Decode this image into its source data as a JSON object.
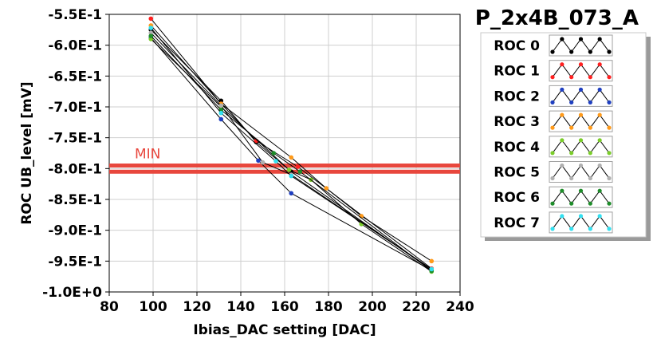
{
  "title": "P_2x4B_073_A",
  "chart_data": {
    "type": "line",
    "xlabel": "Ibias_DAC setting [DAC]",
    "ylabel": "ROC UB_level [mV]",
    "xlim": [
      80,
      240
    ],
    "ylim": [
      -1.0,
      -0.55
    ],
    "x_ticks": [
      80,
      100,
      120,
      140,
      160,
      180,
      200,
      220,
      240
    ],
    "x_tick_labels": [
      "80",
      "100",
      "120",
      "140",
      "160",
      "180",
      "200",
      "220",
      "240"
    ],
    "y_ticks": [
      -0.55,
      -0.6,
      -0.65,
      -0.7,
      -0.75,
      -0.8,
      -0.85,
      -0.9,
      -0.95,
      -1.0
    ],
    "y_tick_labels": [
      "-5.5E-1",
      "-6.0E-1",
      "-6.5E-1",
      "-7.0E-1",
      "-7.5E-1",
      "-8.0E-1",
      "-8.5E-1",
      "-9.0E-1",
      "-9.5E-1",
      "-1.0E+0"
    ],
    "grid": true,
    "legend_position": "right",
    "min_band": {
      "label": "MIN",
      "y_values": [
        -0.795,
        -0.805
      ],
      "color": "#e8473d"
    },
    "series": [
      {
        "name": "ROC 0",
        "color": "#000000",
        "x": [
          99,
          131,
          147,
          163,
          227
        ],
        "y": [
          -0.575,
          -0.69,
          -0.757,
          -0.805,
          -0.965
        ]
      },
      {
        "name": "ROC 1",
        "color": "#ff2020",
        "x": [
          99,
          131,
          147,
          166,
          227
        ],
        "y": [
          -0.557,
          -0.695,
          -0.755,
          -0.797,
          -0.962
        ]
      },
      {
        "name": "ROC 2",
        "color": "#1f3fc0",
        "x": [
          99,
          131,
          148,
          163,
          227
        ],
        "y": [
          -0.588,
          -0.72,
          -0.787,
          -0.84,
          -0.965
        ]
      },
      {
        "name": "ROC 3",
        "color": "#ff9a1a",
        "x": [
          99,
          131,
          163,
          179,
          195,
          227
        ],
        "y": [
          -0.568,
          -0.695,
          -0.782,
          -0.832,
          -0.877,
          -0.95
        ]
      },
      {
        "name": "ROC 4",
        "color": "#7acc2a",
        "x": [
          99,
          131,
          162,
          172,
          195,
          227
        ],
        "y": [
          -0.59,
          -0.7,
          -0.802,
          -0.818,
          -0.89,
          -0.967
        ]
      },
      {
        "name": "ROC 5",
        "color": "#b0b0b0",
        "x": [
          99,
          131,
          150,
          163,
          227
        ],
        "y": [
          -0.58,
          -0.698,
          -0.79,
          -0.81,
          -0.963
        ]
      },
      {
        "name": "ROC 6",
        "color": "#1e8c2a",
        "x": [
          99,
          131,
          155,
          167,
          227
        ],
        "y": [
          -0.585,
          -0.705,
          -0.775,
          -0.805,
          -0.966
        ]
      },
      {
        "name": "ROC 7",
        "color": "#33e0f0",
        "x": [
          99,
          131,
          156,
          163,
          227
        ],
        "y": [
          -0.572,
          -0.71,
          -0.788,
          -0.812,
          -0.963
        ]
      }
    ]
  }
}
